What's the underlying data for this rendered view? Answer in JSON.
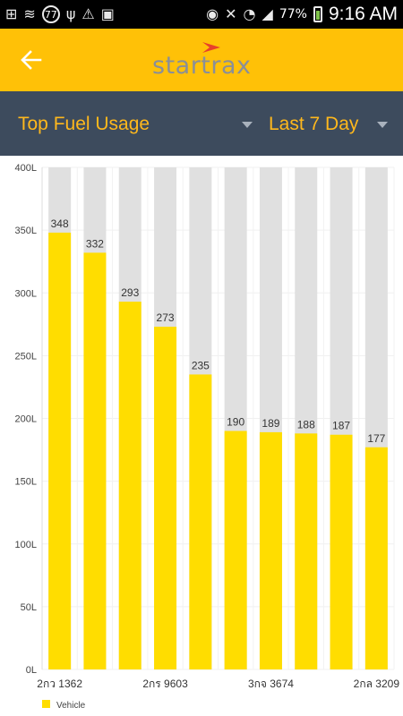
{
  "statusbar": {
    "icons_left": [
      "add-icon",
      "wifi-icon",
      "notification-77-icon",
      "usb-icon",
      "warning-icon",
      "image-icon"
    ],
    "badge_text": "77",
    "icons_right": [
      "eye-icon",
      "mute-icon",
      "wifi-signal-icon",
      "cell-signal-icon",
      "battery-icon"
    ],
    "battery_pct": "77%",
    "time": "9:16 AM"
  },
  "appbar": {
    "logo_text": "startrax",
    "accent": "#ffc107",
    "logo_mark_color": "#e8402a"
  },
  "filterbar": {
    "title": "Top Fuel Usage",
    "period": "Last 7 Day"
  },
  "chart_data": {
    "type": "bar",
    "ylim": [
      0,
      400
    ],
    "yticks": [
      "0L",
      "50L",
      "100L",
      "150L",
      "200L",
      "250L",
      "300L",
      "350L",
      "400L"
    ],
    "ytick_values": [
      0,
      50,
      100,
      150,
      200,
      250,
      300,
      350,
      400
    ],
    "categories_shown": [
      {
        "index": 0,
        "label": "2กว 1362"
      },
      {
        "index": 3,
        "label": "2กร 9603"
      },
      {
        "index": 6,
        "label": "3กจ 3674"
      },
      {
        "index": 9,
        "label": "2กล 3209"
      }
    ],
    "values": [
      348,
      332,
      293,
      273,
      235,
      190,
      189,
      188,
      187,
      177
    ],
    "value_labels": [
      "348",
      "332",
      "293",
      "273",
      "235",
      "190",
      "189",
      "188",
      "187",
      "177"
    ],
    "background_max": 400,
    "bar_color": "#ffdd00",
    "track_color": "#e0e0e0",
    "grid": true,
    "legend": {
      "position": "bottom-left",
      "entries": [
        {
          "name": "Vehicle",
          "color": "#ffdd00"
        }
      ]
    }
  }
}
